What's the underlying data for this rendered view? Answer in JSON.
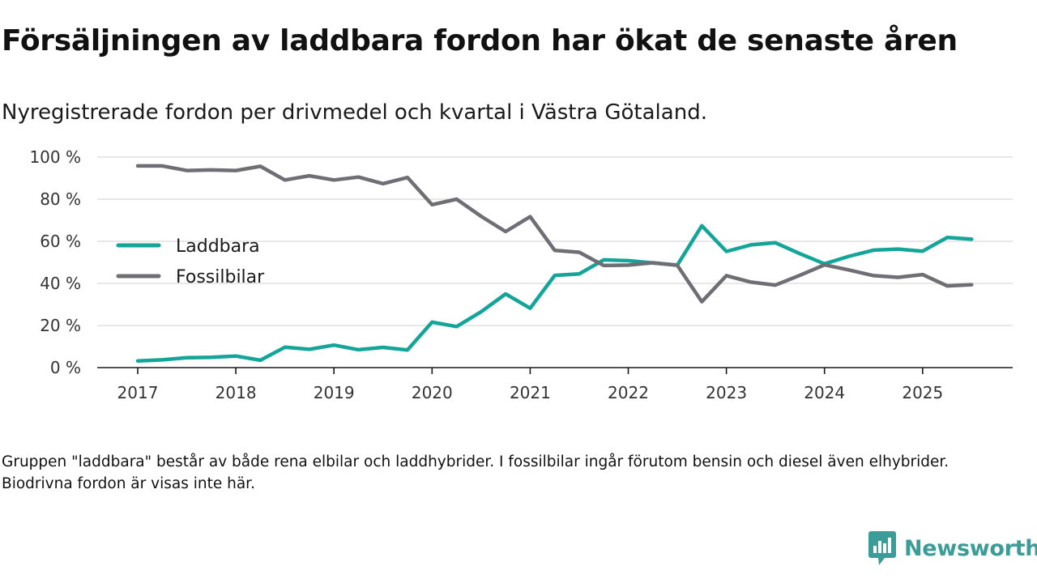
{
  "header": {
    "title": "Försäljningen av laddbara fordon har ökat de senaste åren",
    "subtitle": "Nyregistrerade fordon per drivmedel och kvartal i Västra Götaland."
  },
  "footnote": "Gruppen \"laddbara\" består av både rena elbilar och laddhybrider. I fossilbilar ingår förutom bensin och diesel även elhybrider. Biodrivna fordon är visas inte här.",
  "brand": {
    "name": "Newsworthy",
    "icon": "newsworthy-logo-icon",
    "color": "#3c9c97"
  },
  "chart_data": {
    "type": "line",
    "title": "Försäljningen av laddbara fordon har ökat de senaste åren",
    "subtitle": "Nyregistrerade fordon per drivmedel och kvartal i Västra Götaland.",
    "xlabel": "",
    "ylabel": "",
    "ylim": [
      0,
      100
    ],
    "yticks": [
      0,
      20,
      40,
      60,
      80,
      100
    ],
    "ytick_labels": [
      "0 %",
      "20 %",
      "40 %",
      "60 %",
      "80 %",
      "100 %"
    ],
    "xticks": [
      2017,
      2018,
      2019,
      2020,
      2021,
      2022,
      2023,
      2024,
      2025
    ],
    "xtick_labels": [
      "2017",
      "2018",
      "2019",
      "2020",
      "2021",
      "2022",
      "2023",
      "2024",
      "2025"
    ],
    "x": [
      2017.0,
      2017.25,
      2017.5,
      2017.75,
      2018.0,
      2018.25,
      2018.5,
      2018.75,
      2019.0,
      2019.25,
      2019.5,
      2019.75,
      2020.0,
      2020.25,
      2020.5,
      2020.75,
      2021.0,
      2021.25,
      2021.5,
      2021.75,
      2022.0,
      2022.25,
      2022.5,
      2022.75,
      2023.0,
      2023.25,
      2023.5,
      2023.75,
      2024.0,
      2024.25,
      2024.5,
      2024.75,
      2025.0,
      2025.25,
      2025.5
    ],
    "grid": true,
    "legend_position": "left-middle",
    "series": [
      {
        "name": "Laddbara",
        "color": "#14a59a",
        "values": [
          3.2,
          3.7,
          4.7,
          4.9,
          5.5,
          3.5,
          9.7,
          8.7,
          10.7,
          8.5,
          9.6,
          8.4,
          21.6,
          19.5,
          26.5,
          35.0,
          28.2,
          43.8,
          44.5,
          51.2,
          50.8,
          49.7,
          48.7,
          67.4,
          55.2,
          58.3,
          59.3,
          54.1,
          49.3,
          52.9,
          55.8,
          56.3,
          55.3,
          61.8,
          61.0
        ]
      },
      {
        "name": "Fossilbilar",
        "color": "#6f6e74",
        "values": [
          95.8,
          95.8,
          93.6,
          93.9,
          93.6,
          95.6,
          89.1,
          91.1,
          89.1,
          90.5,
          87.4,
          90.3,
          77.4,
          80.0,
          71.9,
          64.6,
          71.7,
          55.7,
          54.8,
          48.5,
          48.7,
          49.8,
          48.6,
          31.3,
          43.7,
          40.6,
          39.2,
          43.9,
          48.8,
          46.4,
          43.7,
          42.9,
          44.2,
          38.8,
          39.4
        ]
      }
    ]
  }
}
